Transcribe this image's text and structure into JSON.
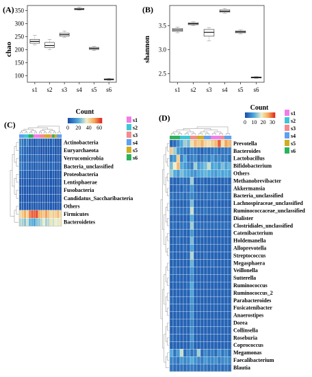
{
  "chart_data": [
    {
      "panel": "(A)",
      "type": "boxplot",
      "ylabel": "chao",
      "categories": [
        "s1",
        "s2",
        "s3",
        "s4",
        "s5",
        "s6"
      ],
      "yticks": [
        100,
        150,
        200,
        250,
        300,
        350
      ],
      "ylim": [
        75,
        370
      ],
      "boxes": [
        {
          "name": "s1",
          "min": 218,
          "q1": 225,
          "median": 232,
          "q3": 240,
          "max": 255
        },
        {
          "name": "s2",
          "min": 200,
          "q1": 208,
          "median": 216,
          "q3": 228,
          "max": 240
        },
        {
          "name": "s3",
          "min": 248,
          "q1": 252,
          "median": 258,
          "q3": 264,
          "max": 272
        },
        {
          "name": "s4",
          "min": 352,
          "q1": 354,
          "median": 356,
          "q3": 359,
          "max": 363
        },
        {
          "name": "s5",
          "min": 197,
          "q1": 201,
          "median": 205,
          "q3": 209,
          "max": 213
        },
        {
          "name": "s6",
          "min": 82,
          "q1": 84,
          "median": 86,
          "q3": 88,
          "max": 90
        }
      ]
    },
    {
      "panel": "(B)",
      "type": "boxplot",
      "ylabel": "shannon",
      "categories": [
        "s1",
        "s2",
        "s3",
        "s4",
        "s5",
        "s6"
      ],
      "yticks": [
        "2.5",
        "3.0",
        "3.5"
      ],
      "ylim": [
        2.32,
        3.92
      ],
      "boxes": [
        {
          "name": "s1",
          "min": 3.35,
          "q1": 3.38,
          "median": 3.41,
          "q3": 3.44,
          "max": 3.47
        },
        {
          "name": "s2",
          "min": 3.5,
          "q1": 3.52,
          "median": 3.54,
          "q3": 3.56,
          "max": 3.58
        },
        {
          "name": "s3",
          "min": 3.18,
          "q1": 3.28,
          "median": 3.36,
          "q3": 3.42,
          "max": 3.46
        },
        {
          "name": "s4",
          "min": 3.76,
          "q1": 3.78,
          "median": 3.8,
          "q3": 3.83,
          "max": 3.86
        },
        {
          "name": "s5",
          "min": 3.33,
          "q1": 3.35,
          "median": 3.37,
          "q3": 3.39,
          "max": 3.41
        },
        {
          "name": "s6",
          "min": 2.4,
          "q1": 2.41,
          "median": 2.42,
          "q3": 2.43,
          "max": 2.44
        }
      ]
    },
    {
      "panel": "(C)",
      "type": "heatmap",
      "legend_title": "Count",
      "legend_ticks": [
        "0",
        "20",
        "40",
        "60"
      ],
      "scale_max": 65,
      "groups": [
        "s1",
        "s2",
        "s3",
        "s4",
        "s5",
        "s6"
      ],
      "group_colors": [
        "#f07ee8",
        "#3cc7d8",
        "#f58c8c",
        "#5ea0f2",
        "#cfae20",
        "#2bb35b"
      ],
      "column_groups": [
        "s4",
        "s4",
        "s2",
        "s2",
        "s6",
        "s6",
        "s1",
        "s1",
        "s1",
        "s3",
        "s3",
        "s5",
        "s5",
        "s3",
        "s6",
        "s5",
        "s4",
        "s4"
      ],
      "rows": [
        "Actinobacteria",
        "Euryarchaeota",
        "Verrucomicrobia",
        "Bacteria_unclassified",
        "Proteobacteria",
        "Lentisphaerae",
        "Fusobacteria",
        "Candidatus_Saccharibacteria",
        "Others",
        "Firmicutes",
        "Bacteroidetes"
      ],
      "values": [
        [
          12,
          8,
          6,
          10,
          4,
          3,
          2,
          3,
          5,
          2,
          1,
          4,
          2,
          3,
          6,
          2,
          1,
          2
        ],
        [
          10,
          6,
          5,
          4,
          3,
          2,
          2,
          3,
          2,
          1,
          1,
          2,
          2,
          2,
          3,
          2,
          1,
          1
        ],
        [
          8,
          5,
          4,
          6,
          3,
          3,
          3,
          4,
          3,
          2,
          2,
          3,
          1,
          2,
          4,
          2,
          2,
          1
        ],
        [
          10,
          7,
          5,
          6,
          4,
          3,
          3,
          3,
          4,
          3,
          2,
          3,
          3,
          4,
          5,
          3,
          2,
          3
        ],
        [
          6,
          4,
          3,
          4,
          2,
          2,
          2,
          2,
          3,
          2,
          2,
          2,
          2,
          1,
          3,
          2,
          1,
          2
        ],
        [
          3,
          2,
          2,
          2,
          1,
          1,
          1,
          1,
          1,
          1,
          1,
          1,
          1,
          1,
          1,
          1,
          1,
          1
        ],
        [
          2,
          2,
          1,
          1,
          1,
          1,
          1,
          1,
          1,
          1,
          1,
          1,
          1,
          1,
          1,
          1,
          1,
          1
        ],
        [
          2,
          2,
          1,
          1,
          1,
          1,
          1,
          1,
          1,
          1,
          1,
          1,
          1,
          1,
          1,
          1,
          1,
          1
        ],
        [
          3,
          3,
          2,
          2,
          2,
          2,
          2,
          2,
          2,
          2,
          2,
          2,
          2,
          2,
          2,
          2,
          2,
          2
        ],
        [
          40,
          45,
          50,
          42,
          55,
          60,
          58,
          62,
          50,
          48,
          45,
          52,
          46,
          40,
          44,
          42,
          48,
          40
        ],
        [
          30,
          28,
          25,
          32,
          22,
          20,
          18,
          24,
          26,
          30,
          35,
          28,
          30,
          38,
          32,
          36,
          34,
          38
        ]
      ]
    },
    {
      "panel": "(D)",
      "type": "heatmap",
      "legend_title": "Count",
      "legend_ticks": [
        "0",
        "10",
        "20",
        "30"
      ],
      "scale_max": 33,
      "groups": [
        "s1",
        "s2",
        "s3",
        "s4",
        "s5",
        "s6"
      ],
      "group_colors": [
        "#f07ee8",
        "#3cc7d8",
        "#f58c8c",
        "#5ea0f2",
        "#cfae20",
        "#2bb35b"
      ],
      "column_groups": [
        "s6",
        "s6",
        "s6",
        "s2",
        "s2",
        "s2",
        "s3",
        "s3",
        "s5",
        "s5",
        "s4",
        "s4",
        "s1",
        "s1",
        "s1",
        "s3",
        "s4",
        "s4"
      ],
      "rows": [
        "Prevotella",
        "Bacteroides",
        "Lactobacillus",
        "Bifidobacterium",
        "Others",
        "Methanobrevibacter",
        "Akkermansia",
        "Bacteria_unclassified",
        "Lachnospiraceae_unclassified",
        "Ruminococcaceae_unclassified",
        "Dialister",
        "Clostridiales_unclassified",
        "Catenibacterium",
        "Holdemanella",
        "Alloprevotella",
        "Streptococcus",
        "Megasphaera",
        "Veillonella",
        "Sutterella",
        "Ruminococcus",
        "Ruminococcus_2",
        "Parabacteroides",
        "Fusicatenibacter",
        "Anaerostipes",
        "Dorea",
        "Collinsella",
        "Roseburia",
        "Coprococcus",
        "Megamonas",
        "Faecalibacterium",
        "Blautia"
      ],
      "values": [
        [
          2,
          3,
          6,
          10,
          14,
          12,
          20,
          24,
          22,
          25,
          21,
          20,
          22,
          24,
          30,
          20,
          26,
          24
        ],
        [
          22,
          14,
          8,
          6,
          4,
          3,
          5,
          4,
          3,
          2,
          4,
          3,
          4,
          5,
          3,
          4,
          4,
          5
        ],
        [
          6,
          8,
          22,
          5,
          10,
          4,
          5,
          6,
          3,
          4,
          6,
          4,
          8,
          5,
          6,
          4,
          5,
          3
        ],
        [
          12,
          18,
          24,
          10,
          8,
          6,
          5,
          14,
          8,
          10,
          12,
          16,
          9,
          10,
          8,
          12,
          9,
          11
        ],
        [
          14,
          10,
          8,
          12,
          10,
          9,
          8,
          7,
          9,
          10,
          11,
          10,
          9,
          8,
          10,
          9,
          10,
          9
        ],
        [
          3,
          2,
          2,
          4,
          3,
          3,
          14,
          2,
          2,
          3,
          2,
          2,
          3,
          2,
          2,
          2,
          3,
          2
        ],
        [
          2,
          2,
          3,
          2,
          4,
          3,
          8,
          3,
          2,
          3,
          3,
          2,
          2,
          2,
          2,
          2,
          2,
          3
        ],
        [
          4,
          3,
          3,
          4,
          3,
          4,
          6,
          4,
          3,
          3,
          3,
          4,
          3,
          3,
          4,
          3,
          3,
          3
        ],
        [
          3,
          2,
          2,
          2,
          2,
          3,
          12,
          2,
          2,
          2,
          3,
          2,
          2,
          3,
          2,
          2,
          2,
          2
        ],
        [
          4,
          3,
          3,
          3,
          3,
          4,
          16,
          3,
          3,
          3,
          4,
          3,
          3,
          3,
          3,
          3,
          3,
          3
        ],
        [
          2,
          2,
          2,
          2,
          2,
          2,
          10,
          2,
          2,
          2,
          2,
          2,
          2,
          2,
          2,
          2,
          2,
          2
        ],
        [
          3,
          3,
          2,
          3,
          3,
          3,
          14,
          3,
          3,
          3,
          3,
          3,
          3,
          3,
          3,
          3,
          3,
          3
        ],
        [
          2,
          2,
          2,
          3,
          2,
          2,
          8,
          2,
          2,
          3,
          2,
          2,
          2,
          2,
          2,
          2,
          2,
          2
        ],
        [
          2,
          2,
          3,
          2,
          2,
          2,
          12,
          2,
          2,
          2,
          2,
          2,
          2,
          2,
          2,
          2,
          2,
          2
        ],
        [
          2,
          2,
          2,
          2,
          3,
          2,
          9,
          2,
          2,
          2,
          2,
          2,
          2,
          2,
          2,
          2,
          2,
          2
        ],
        [
          3,
          2,
          2,
          2,
          2,
          3,
          15,
          2,
          2,
          2,
          3,
          2,
          2,
          2,
          2,
          2,
          2,
          2
        ],
        [
          2,
          2,
          2,
          2,
          2,
          2,
          11,
          2,
          2,
          2,
          2,
          2,
          3,
          2,
          2,
          2,
          2,
          2
        ],
        [
          2,
          3,
          2,
          2,
          2,
          2,
          8,
          2,
          2,
          2,
          2,
          2,
          2,
          2,
          2,
          2,
          2,
          2
        ],
        [
          2,
          2,
          2,
          2,
          2,
          2,
          7,
          2,
          2,
          2,
          2,
          2,
          2,
          2,
          2,
          2,
          2,
          2
        ],
        [
          2,
          2,
          2,
          2,
          2,
          3,
          10,
          2,
          2,
          2,
          2,
          2,
          2,
          2,
          2,
          2,
          2,
          2
        ],
        [
          2,
          2,
          2,
          2,
          2,
          2,
          9,
          2,
          2,
          2,
          2,
          2,
          2,
          2,
          2,
          2,
          2,
          2
        ],
        [
          3,
          2,
          2,
          2,
          2,
          2,
          8,
          2,
          2,
          2,
          2,
          2,
          2,
          2,
          2,
          2,
          2,
          2
        ],
        [
          2,
          2,
          2,
          2,
          2,
          2,
          7,
          2,
          2,
          2,
          2,
          2,
          2,
          2,
          2,
          2,
          2,
          2
        ],
        [
          2,
          2,
          2,
          2,
          2,
          2,
          8,
          2,
          2,
          2,
          2,
          2,
          2,
          2,
          2,
          2,
          2,
          2
        ],
        [
          2,
          2,
          2,
          2,
          2,
          2,
          6,
          2,
          2,
          2,
          2,
          2,
          2,
          2,
          2,
          2,
          2,
          2
        ],
        [
          2,
          2,
          3,
          2,
          2,
          2,
          7,
          2,
          2,
          2,
          2,
          2,
          2,
          2,
          2,
          2,
          2,
          2
        ],
        [
          3,
          2,
          2,
          2,
          2,
          2,
          8,
          2,
          2,
          2,
          2,
          2,
          2,
          2,
          2,
          2,
          2,
          2
        ],
        [
          2,
          2,
          2,
          2,
          2,
          2,
          6,
          2,
          2,
          2,
          2,
          2,
          2,
          2,
          2,
          2,
          2,
          2
        ],
        [
          10,
          4,
          8,
          16,
          3,
          6,
          4,
          5,
          14,
          3,
          6,
          4,
          5,
          3,
          7,
          4,
          6,
          3
        ],
        [
          6,
          5,
          4,
          8,
          6,
          7,
          10,
          7,
          6,
          5,
          8,
          6,
          6,
          7,
          5,
          6,
          7,
          6
        ],
        [
          4,
          3,
          3,
          4,
          3,
          4,
          5,
          4,
          3,
          4,
          4,
          3,
          4,
          3,
          4,
          3,
          4,
          3
        ]
      ]
    }
  ]
}
